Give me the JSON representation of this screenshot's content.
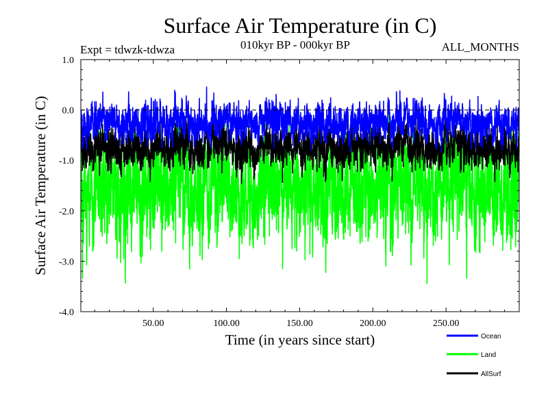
{
  "chart_data": {
    "type": "line",
    "title": "Surface Air Temperature (in C)",
    "subtitle_left": "Expt = tdwzk-tdwza",
    "subtitle_center": "010kyr BP - 000kyr BP",
    "subtitle_right": "ALL_MONTHS",
    "xlabel": "Time (in years since start)",
    "ylabel": "Surface Air Temperature (in C)",
    "xlim": [
      0.5,
      300
    ],
    "ylim": [
      -4.0,
      1.0
    ],
    "xticks": [
      50,
      100,
      150,
      200,
      250
    ],
    "xtick_labels": [
      "50.00",
      "100.00",
      "150.00",
      "200.00",
      "250.00"
    ],
    "yticks": [
      1.0,
      0.0,
      -1.0,
      -2.0,
      -3.0,
      -4.0
    ],
    "ytick_labels": [
      "1.0",
      "0.0",
      "-1.0",
      "-2.0",
      "-3.0",
      "-4.0"
    ],
    "reference_line": 0.0,
    "samples_per_year": 12,
    "series": [
      {
        "name": "Land",
        "color": "#00ff00",
        "mean": -1.6,
        "spread": 0.55,
        "min": -3.55,
        "max": 0.0
      },
      {
        "name": "AllSurf",
        "color": "#000000",
        "mean": -0.75,
        "spread": 0.22,
        "min": -1.5,
        "max": -0.1
      },
      {
        "name": "Ocean",
        "color": "#0000ff",
        "mean": -0.25,
        "spread": 0.2,
        "min": -0.85,
        "max": 0.52
      }
    ],
    "legend": [
      {
        "label": "Ocean",
        "color": "#0000ff"
      },
      {
        "label": "Land",
        "color": "#00ff00"
      },
      {
        "label": "AllSurf",
        "color": "#000000"
      }
    ]
  }
}
